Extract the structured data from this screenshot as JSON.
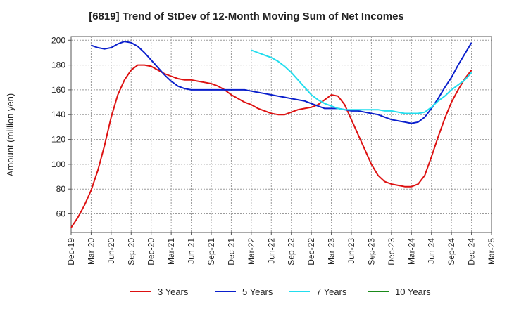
{
  "chart_data": {
    "type": "line",
    "title": "[6819]  Trend of StDev of 12-Month Moving Sum of Net Incomes",
    "ylabel": "Amount (million yen)",
    "xlabel": "",
    "ylim": [
      45,
      203
    ],
    "yticks": [
      60,
      80,
      100,
      120,
      140,
      160,
      180,
      200
    ],
    "x_start": "2019-12",
    "x_end": "2025-03",
    "x_ticks": [
      "Dec-19",
      "Mar-20",
      "Jun-20",
      "Sep-20",
      "Dec-20",
      "Mar-21",
      "Jun-21",
      "Sep-21",
      "Dec-21",
      "Mar-22",
      "Jun-22",
      "Sep-22",
      "Dec-22",
      "Mar-23",
      "Jun-23",
      "Sep-23",
      "Dec-23",
      "Mar-24",
      "Jun-24",
      "Sep-24",
      "Dec-24",
      "Mar-25"
    ],
    "grid": true,
    "legend_position": "bottom",
    "series": [
      {
        "name": "3 Years",
        "color": "#dd1111",
        "points": [
          [
            "2019-12",
            49
          ],
          [
            "2020-01",
            57
          ],
          [
            "2020-02",
            67
          ],
          [
            "2020-03",
            79
          ],
          [
            "2020-04",
            95
          ],
          [
            "2020-05",
            115
          ],
          [
            "2020-06",
            138
          ],
          [
            "2020-07",
            156
          ],
          [
            "2020-08",
            168
          ],
          [
            "2020-09",
            176
          ],
          [
            "2020-10",
            180
          ],
          [
            "2020-11",
            180
          ],
          [
            "2020-12",
            179
          ],
          [
            "2021-01",
            176
          ],
          [
            "2021-02",
            173
          ],
          [
            "2021-03",
            171
          ],
          [
            "2021-04",
            169
          ],
          [
            "2021-05",
            168
          ],
          [
            "2021-06",
            168
          ],
          [
            "2021-07",
            167
          ],
          [
            "2021-08",
            166
          ],
          [
            "2021-09",
            165
          ],
          [
            "2021-10",
            163
          ],
          [
            "2021-11",
            160
          ],
          [
            "2021-12",
            156
          ],
          [
            "2022-01",
            153
          ],
          [
            "2022-02",
            150
          ],
          [
            "2022-03",
            148
          ],
          [
            "2022-04",
            145
          ],
          [
            "2022-05",
            143
          ],
          [
            "2022-06",
            141
          ],
          [
            "2022-07",
            140
          ],
          [
            "2022-08",
            140
          ],
          [
            "2022-09",
            142
          ],
          [
            "2022-10",
            144
          ],
          [
            "2022-11",
            145
          ],
          [
            "2022-12",
            146
          ],
          [
            "2023-01",
            148
          ],
          [
            "2023-02",
            152
          ],
          [
            "2023-03",
            156
          ],
          [
            "2023-04",
            155
          ],
          [
            "2023-05",
            148
          ],
          [
            "2023-06",
            136
          ],
          [
            "2023-07",
            124
          ],
          [
            "2023-08",
            112
          ],
          [
            "2023-09",
            100
          ],
          [
            "2023-10",
            91
          ],
          [
            "2023-11",
            86
          ],
          [
            "2023-12",
            84
          ],
          [
            "2024-01",
            83
          ],
          [
            "2024-02",
            82
          ],
          [
            "2024-03",
            82
          ],
          [
            "2024-04",
            84
          ],
          [
            "2024-05",
            91
          ],
          [
            "2024-06",
            106
          ],
          [
            "2024-07",
            122
          ],
          [
            "2024-08",
            137
          ],
          [
            "2024-09",
            150
          ],
          [
            "2024-10",
            160
          ],
          [
            "2024-11",
            169
          ],
          [
            "2024-12",
            176
          ]
        ]
      },
      {
        "name": "5 Years",
        "color": "#0a1fcc",
        "points": [
          [
            "2020-03",
            196
          ],
          [
            "2020-04",
            194
          ],
          [
            "2020-05",
            193
          ],
          [
            "2020-06",
            194
          ],
          [
            "2020-07",
            197
          ],
          [
            "2020-08",
            199
          ],
          [
            "2020-09",
            198
          ],
          [
            "2020-10",
            195
          ],
          [
            "2020-11",
            190
          ],
          [
            "2020-12",
            184
          ],
          [
            "2021-01",
            178
          ],
          [
            "2021-02",
            172
          ],
          [
            "2021-03",
            167
          ],
          [
            "2021-04",
            163
          ],
          [
            "2021-05",
            161
          ],
          [
            "2021-06",
            160
          ],
          [
            "2021-07",
            160
          ],
          [
            "2021-08",
            160
          ],
          [
            "2021-09",
            160
          ],
          [
            "2021-10",
            160
          ],
          [
            "2021-11",
            160
          ],
          [
            "2021-12",
            160
          ],
          [
            "2022-01",
            160
          ],
          [
            "2022-02",
            160
          ],
          [
            "2022-03",
            159
          ],
          [
            "2022-04",
            158
          ],
          [
            "2022-05",
            157
          ],
          [
            "2022-06",
            156
          ],
          [
            "2022-07",
            155
          ],
          [
            "2022-08",
            154
          ],
          [
            "2022-09",
            153
          ],
          [
            "2022-10",
            152
          ],
          [
            "2022-11",
            151
          ],
          [
            "2022-12",
            149
          ],
          [
            "2023-01",
            147
          ],
          [
            "2023-02",
            145
          ],
          [
            "2023-03",
            145
          ],
          [
            "2023-04",
            145
          ],
          [
            "2023-05",
            144
          ],
          [
            "2023-06",
            143
          ],
          [
            "2023-07",
            143
          ],
          [
            "2023-08",
            142
          ],
          [
            "2023-09",
            141
          ],
          [
            "2023-10",
            140
          ],
          [
            "2023-11",
            138
          ],
          [
            "2023-12",
            136
          ],
          [
            "2024-01",
            135
          ],
          [
            "2024-02",
            134
          ],
          [
            "2024-03",
            133
          ],
          [
            "2024-04",
            134
          ],
          [
            "2024-05",
            138
          ],
          [
            "2024-06",
            145
          ],
          [
            "2024-07",
            153
          ],
          [
            "2024-08",
            162
          ],
          [
            "2024-09",
            170
          ],
          [
            "2024-10",
            180
          ],
          [
            "2024-11",
            189
          ],
          [
            "2024-12",
            198
          ]
        ]
      },
      {
        "name": "7 Years",
        "color": "#22ddee",
        "points": [
          [
            "2022-03",
            192
          ],
          [
            "2022-04",
            190
          ],
          [
            "2022-05",
            188
          ],
          [
            "2022-06",
            186
          ],
          [
            "2022-07",
            183
          ],
          [
            "2022-08",
            179
          ],
          [
            "2022-09",
            174
          ],
          [
            "2022-10",
            168
          ],
          [
            "2022-11",
            162
          ],
          [
            "2022-12",
            156
          ],
          [
            "2023-01",
            152
          ],
          [
            "2023-02",
            149
          ],
          [
            "2023-03",
            147
          ],
          [
            "2023-04",
            145
          ],
          [
            "2023-05",
            144
          ],
          [
            "2023-06",
            144
          ],
          [
            "2023-07",
            144
          ],
          [
            "2023-08",
            144
          ],
          [
            "2023-09",
            144
          ],
          [
            "2023-10",
            144
          ],
          [
            "2023-11",
            143
          ],
          [
            "2023-12",
            143
          ],
          [
            "2024-01",
            142
          ],
          [
            "2024-02",
            141
          ],
          [
            "2024-03",
            141
          ],
          [
            "2024-04",
            141
          ],
          [
            "2024-05",
            142
          ],
          [
            "2024-06",
            146
          ],
          [
            "2024-07",
            151
          ],
          [
            "2024-08",
            155
          ],
          [
            "2024-09",
            160
          ],
          [
            "2024-10",
            164
          ],
          [
            "2024-11",
            168
          ],
          [
            "2024-12",
            174
          ]
        ]
      },
      {
        "name": "10 Years",
        "color": "#1a8a1a",
        "points": []
      }
    ]
  }
}
